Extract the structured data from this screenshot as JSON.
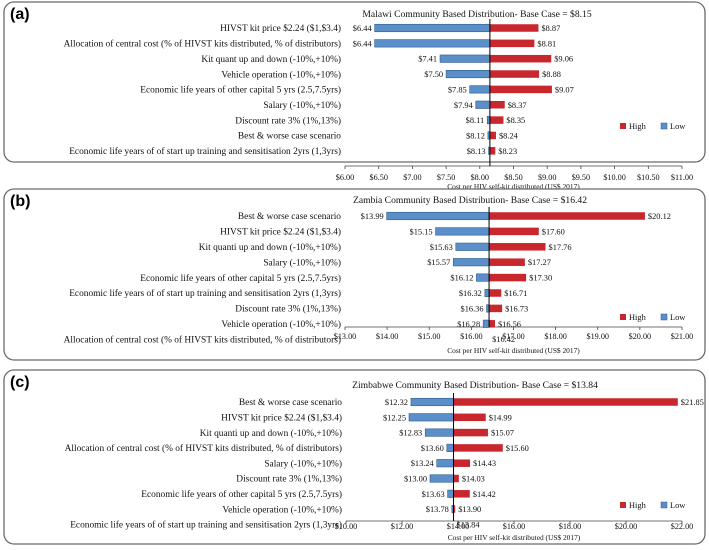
{
  "chart_data": [
    {
      "type": "tornado",
      "panel_label": "(a)",
      "title": "Malawi Community Based Distribution- Base Case = $8.15",
      "base_case": 8.15,
      "xlabel": "Cost per HIV self-kit distributed (US$ 2017)",
      "xlim": [
        6.0,
        11.0
      ],
      "xticks": [
        6.0,
        6.5,
        7.0,
        7.5,
        8.0,
        8.5,
        9.0,
        9.5,
        10.0,
        10.5,
        11.0
      ],
      "xtick_labels": [
        "$6.00",
        "$6.50",
        "$7.00",
        "$7.50",
        "$8.00",
        "$8.50",
        "$9.00",
        "$9.50",
        "$10.00",
        "$10.50",
        "$11.00"
      ],
      "legend": {
        "high": "High",
        "low": "Low"
      },
      "rows": [
        {
          "label": "HIVST kit price $2.24 ($1,$3.4)",
          "low": 6.44,
          "high": 8.87,
          "low_label": "$6.44",
          "high_label": "$8.87"
        },
        {
          "label": "Allocation of central cost (% of HIVST kits distributed, % of distributors)",
          "low": 6.44,
          "high": 8.81,
          "low_label": "$6.44",
          "high_label": "$8.81"
        },
        {
          "label": "Kit quant up and down (-10%,+10%)",
          "low": 7.41,
          "high": 9.06,
          "low_label": "$7.41",
          "high_label": "$9.06"
        },
        {
          "label": "Vehicle operation (-10%,+10%)",
          "low": 7.5,
          "high": 8.88,
          "low_label": "$7.50",
          "high_label": "$8.88"
        },
        {
          "label": "Economic life years of other capital 5 yrs (2.5,7.5yrs)",
          "low": 7.85,
          "high": 9.07,
          "low_label": "$7.85",
          "high_label": "$9.07"
        },
        {
          "label": "Salary (-10%,+10%)",
          "low": 7.94,
          "high": 8.37,
          "low_label": "$7.94",
          "high_label": "$8.37"
        },
        {
          "label": "Discount rate 3% (1%,13%)",
          "low": 8.11,
          "high": 8.35,
          "low_label": "$8.11",
          "high_label": "$8.35"
        },
        {
          "label": "Best & worse case scenario",
          "low": 8.12,
          "high": 8.24,
          "low_label": "$8.12",
          "high_label": "$8.24"
        },
        {
          "label": "Economic life years of of start up training and sensitisation 2yrs (1,3yrs)",
          "low": 8.13,
          "high": 8.23,
          "low_label": "$8.13",
          "high_label": "$8.23"
        }
      ]
    },
    {
      "type": "tornado",
      "panel_label": "(b)",
      "title": "Zambia Community Based Distribution- Base Case = $16.42",
      "base_case": 16.42,
      "xlabel": "Cost per HIV self-kit distributed (US$ 2017)",
      "xlim": [
        13.0,
        21.0
      ],
      "xticks": [
        13,
        14,
        15,
        16,
        17,
        18,
        19,
        20,
        21
      ],
      "xtick_labels": [
        "$13.00",
        "$14.00",
        "$15.00",
        "$16.00",
        "$17.00",
        "$18.00",
        "$19.00",
        "$20.00",
        "$21.00"
      ],
      "legend": {
        "high": "High",
        "low": "Low"
      },
      "rows": [
        {
          "label": "Best & worse case scenario",
          "low": 13.99,
          "high": 20.12,
          "low_label": "$13.99",
          "high_label": "$20.12"
        },
        {
          "label": "HIVST kit price $2.24 ($1,$3.4)",
          "low": 15.15,
          "high": 17.6,
          "low_label": "$15.15",
          "high_label": "$17.60"
        },
        {
          "label": "Kit quanti up and down (-10%,+10%)",
          "low": 15.63,
          "high": 17.76,
          "low_label": "$15.63",
          "high_label": "$17.76"
        },
        {
          "label": "Salary (-10%,+10%)",
          "low": 15.57,
          "high": 17.27,
          "low_label": "$15.57",
          "high_label": "$17.27"
        },
        {
          "label": "Economic life years of other capital 5 yrs (2.5,7.5yrs)",
          "low": 16.12,
          "high": 17.3,
          "low_label": "$16.12",
          "high_label": "$17.30"
        },
        {
          "label": "Economic life years of of start up training and sensitisation 2yrs (1,3yrs)",
          "low": 16.32,
          "high": 16.71,
          "low_label": "$16.32",
          "high_label": "$16.71"
        },
        {
          "label": "Discount rate 3% (1%,13%)",
          "low": 16.36,
          "high": 16.73,
          "low_label": "$16.36",
          "high_label": "$16.73"
        },
        {
          "label": "Vehicle operation (-10%,+10%)",
          "low": 16.28,
          "high": 16.56,
          "low_label": "$16.28",
          "high_label": "$16.56"
        },
        {
          "label": "Allocation of central cost (% of HIVST kits distributed, % of distributors)",
          "low": 16.42,
          "high": 16.42,
          "low_label": "",
          "high_label": "$16.42"
        }
      ]
    },
    {
      "type": "tornado",
      "panel_label": "(c)",
      "title": "Zimbabwe Community Based Distribution- Base Case = $13.84",
      "base_case": 13.84,
      "xlabel": "Cost per HIV self-kit distributed (US$ 2017)",
      "xlim": [
        10.0,
        22.0
      ],
      "xticks": [
        10,
        12,
        14,
        16,
        18,
        20,
        22
      ],
      "xtick_labels": [
        "$10.00",
        "$12.00",
        "$14.00",
        "$16.00",
        "$18.00",
        "$20.00",
        "$22.00"
      ],
      "legend": {
        "high": "High",
        "low": "Low"
      },
      "rows": [
        {
          "label": "Best & worse case scenario",
          "low": 12.32,
          "high": 21.85,
          "low_label": "$12.32",
          "high_label": "$21.85"
        },
        {
          "label": "HIVST kit price $2.24 ($1,$3.4)",
          "low": 12.25,
          "high": 14.99,
          "low_label": "$12.25",
          "high_label": "$14.99"
        },
        {
          "label": "Kit quanti up and down (-10%,+10%)",
          "low": 12.83,
          "high": 15.07,
          "low_label": "$12.83",
          "high_label": "$15.07"
        },
        {
          "label": "Allocation of central cost (% of HIVST kits distributed, % of distributors)",
          "low": 13.6,
          "high": 15.6,
          "low_label": "$13.60",
          "high_label": "$15.60"
        },
        {
          "label": "Salary (-10%,+10%)",
          "low": 13.24,
          "high": 14.43,
          "low_label": "$13.24",
          "high_label": "$14.43"
        },
        {
          "label": "Discount rate 3% (1%,13%)",
          "low": 13.0,
          "high": 14.03,
          "low_label": "$13.00",
          "high_label": "$14.03"
        },
        {
          "label": "Economic life years of other capital 5 yrs (2.5,7.5yrs)",
          "low": 13.63,
          "high": 14.42,
          "low_label": "$13.63",
          "high_label": "$14.42"
        },
        {
          "label": "Vehicle operation (-10%,+10%)",
          "low": 13.78,
          "high": 13.9,
          "low_label": "$13.78",
          "high_label": "$13.90"
        },
        {
          "label": "Economic life years of of start up training and sensitisation 2yrs (1,3yrs)",
          "low": 13.84,
          "high": 13.84,
          "low_label": "",
          "high_label": "$13.84"
        }
      ]
    }
  ],
  "colors": {
    "high": "#c8272d",
    "low": "#5b8fc9",
    "low_border": "#2f5d8a",
    "base_line": "#000000",
    "axis": "#444444",
    "panel_border": "#6b6b6b"
  }
}
